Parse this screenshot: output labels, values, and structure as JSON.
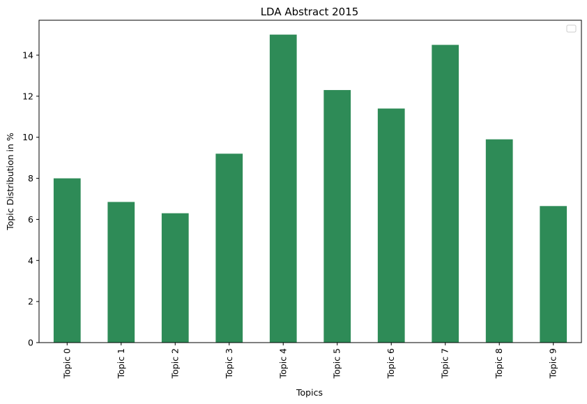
{
  "chart_data": {
    "type": "bar",
    "title": "LDA Abstract 2015",
    "xlabel": "Topics",
    "ylabel": "Topic Distribution in %",
    "categories": [
      "Topic 0",
      "Topic 1",
      "Topic 2",
      "Topic 3",
      "Topic 4",
      "Topic 5",
      "Topic 6",
      "Topic 7",
      "Topic 8",
      "Topic 9"
    ],
    "values": [
      8.0,
      6.85,
      6.3,
      9.2,
      15.0,
      12.3,
      11.4,
      14.5,
      9.9,
      6.65
    ],
    "ylim": [
      0,
      15.7
    ],
    "yticks": [
      0,
      2,
      4,
      6,
      8,
      10,
      12,
      14
    ],
    "bar_color": "#2e8b57",
    "grid": false,
    "legend": {
      "placement": "top-right",
      "entries": []
    }
  }
}
